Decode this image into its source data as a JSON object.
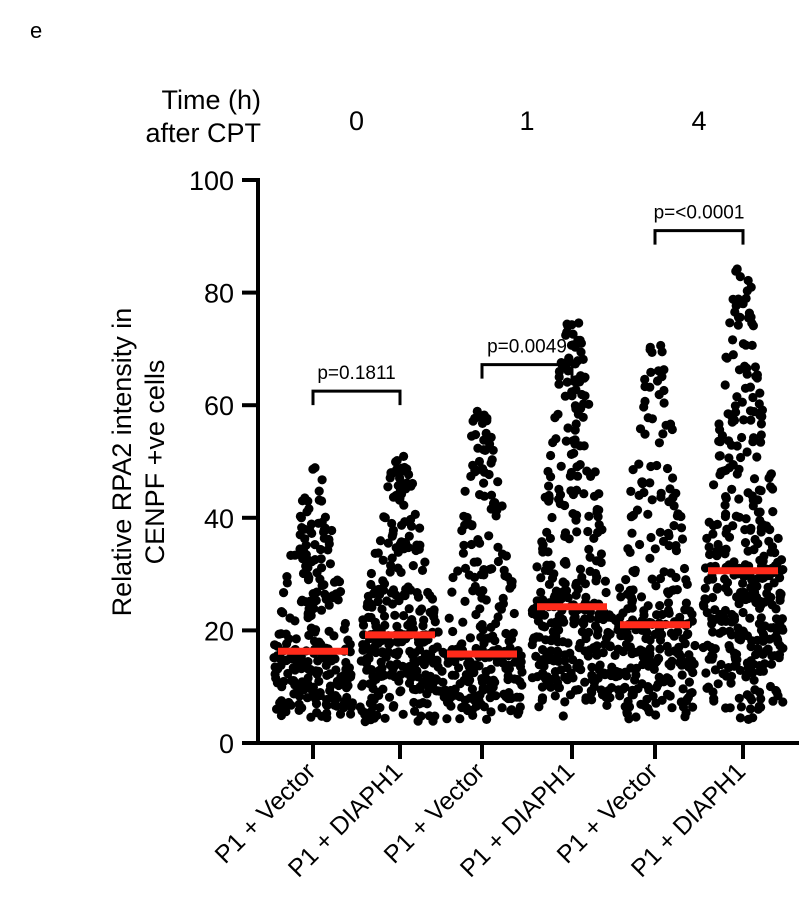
{
  "panel_letter": "e",
  "time_axis": {
    "title_line1": "Time (h)",
    "title_line2": "after CPT",
    "labels": [
      "0",
      "1",
      "4"
    ]
  },
  "colors": {
    "points": "#000000",
    "median": "#ff2a1a",
    "axis": "#000000"
  },
  "chart_data": {
    "type": "scatter",
    "subtype": "dot-strip-plot-with-median",
    "title": "",
    "xlabel": "",
    "ylabel_line1": "Relative RPA2 intensity in",
    "ylabel_line2": "CENPF +ve cells",
    "ylim": [
      0,
      100
    ],
    "yticks": [
      0,
      20,
      40,
      60,
      80,
      100
    ],
    "categories": [
      "P1 + Vector",
      "P1 + DIAPH1",
      "P1 + Vector",
      "P1 + DIAPH1",
      "P1 + Vector",
      "P1 + DIAPH1"
    ],
    "time_groups": [
      "0",
      "1",
      "4"
    ],
    "medians": [
      16.3,
      19.2,
      15.8,
      24.2,
      21.0,
      30.6
    ],
    "ranges": [
      [
        4.5,
        48.9
      ],
      [
        3.8,
        50.9
      ],
      [
        4.2,
        58.9
      ],
      [
        4.8,
        74.6
      ],
      [
        4.3,
        70.6
      ],
      [
        4.2,
        84.2
      ]
    ],
    "comparisons": [
      {
        "groups": [
          0,
          1
        ],
        "label": "p=0.1811",
        "y": 62.5
      },
      {
        "groups": [
          2,
          3
        ],
        "label": "p=0.0049",
        "y": 67.2
      },
      {
        "groups": [
          4,
          5
        ],
        "label": "p=<0.0001",
        "y": 91.0
      }
    ],
    "grid": false,
    "legend": "none"
  }
}
